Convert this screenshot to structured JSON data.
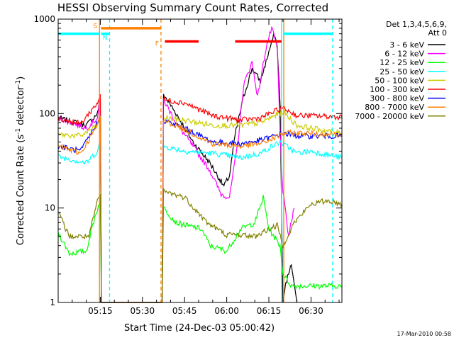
{
  "chart_data": {
    "type": "line",
    "title": "HESSI Observing Summary Count Rates, Corrected",
    "xlabel": "Start Time (24-Dec-03 05:00:42)",
    "ylabel_main": "Corrected Count Rate (s",
    "ylabel_sup1": "-1",
    "ylabel_mid": " detector",
    "ylabel_sup2": "-1",
    "ylabel_end": ")",
    "y_scale": "log",
    "ylim": [
      1,
      1000
    ],
    "xlim_minutes": [
      0,
      101
    ],
    "x_ticks": [
      {
        "m": 15,
        "label": "05:15"
      },
      {
        "m": 30,
        "label": "05:30"
      },
      {
        "m": 45,
        "label": "05:45"
      },
      {
        "m": 60,
        "label": "06:00"
      },
      {
        "m": 75,
        "label": "06:15"
      },
      {
        "m": 90,
        "label": "06:30"
      }
    ],
    "y_ticks": [
      {
        "v": 1,
        "label": "1"
      },
      {
        "v": 10,
        "label": "10"
      },
      {
        "v": 100,
        "label": "100"
      },
      {
        "v": 1000,
        "label": "1000"
      }
    ],
    "legend_header": [
      "Det 1,3,4,5,6,9,",
      "Att 0"
    ],
    "series": [
      {
        "name": "3 - 6 keV",
        "color": "#000000",
        "points": [
          [
            0,
            90
          ],
          [
            10,
            75
          ],
          [
            14,
            100
          ],
          [
            15,
            150
          ],
          [
            15.4,
            1
          ],
          [
            37,
            1
          ],
          [
            37.5,
            160
          ],
          [
            42,
            100
          ],
          [
            48,
            50
          ],
          [
            54,
            30
          ],
          [
            59,
            17
          ],
          [
            61,
            22
          ],
          [
            63,
            60
          ],
          [
            66,
            150
          ],
          [
            69,
            300
          ],
          [
            72,
            220
          ],
          [
            75,
            450
          ],
          [
            77,
            700
          ],
          [
            78,
            500
          ],
          [
            79,
            120
          ],
          [
            80,
            1
          ],
          [
            81,
            1.6
          ],
          [
            83,
            2.5
          ],
          [
            85,
            1
          ]
        ]
      },
      {
        "name": "6 - 12 keV",
        "color": "#ff00ff",
        "points": [
          [
            0,
            90
          ],
          [
            10,
            70
          ],
          [
            14,
            90
          ],
          [
            15,
            150
          ],
          [
            15.4,
            1
          ],
          [
            37,
            1
          ],
          [
            37.5,
            140
          ],
          [
            42,
            80
          ],
          [
            48,
            45
          ],
          [
            54,
            25
          ],
          [
            58,
            14
          ],
          [
            61,
            13
          ],
          [
            64,
            50
          ],
          [
            66,
            200
          ],
          [
            69,
            350
          ],
          [
            71,
            150
          ],
          [
            74,
            500
          ],
          [
            76,
            800
          ],
          [
            78,
            500
          ],
          [
            79,
            60
          ],
          [
            80,
            15
          ],
          [
            82,
            5
          ],
          [
            84,
            10
          ]
        ]
      },
      {
        "name": "12 - 25 keV",
        "color": "#00ff00",
        "points": [
          [
            0,
            5.5
          ],
          [
            4,
            3.3
          ],
          [
            10,
            3.5
          ],
          [
            13,
            8
          ],
          [
            15,
            12
          ],
          [
            15.4,
            1
          ],
          [
            37,
            1
          ],
          [
            37.5,
            10
          ],
          [
            42,
            7
          ],
          [
            46,
            6.5
          ],
          [
            51,
            6
          ],
          [
            54,
            4
          ],
          [
            60,
            3.5
          ],
          [
            65,
            6
          ],
          [
            70,
            7
          ],
          [
            73,
            13
          ],
          [
            75,
            6
          ],
          [
            79,
            4
          ],
          [
            80,
            2
          ],
          [
            83,
            1.5
          ],
          [
            101,
            1.5
          ]
        ]
      },
      {
        "name": "25 - 50 keV",
        "color": "#00ffff",
        "points": [
          [
            0,
            35
          ],
          [
            6,
            32
          ],
          [
            10,
            30
          ],
          [
            14,
            40
          ],
          [
            15,
            50
          ],
          [
            15.4,
            1
          ],
          [
            37,
            1
          ],
          [
            37.5,
            45
          ],
          [
            45,
            40
          ],
          [
            55,
            38
          ],
          [
            65,
            34
          ],
          [
            72,
            38
          ],
          [
            76,
            45
          ],
          [
            79,
            50
          ],
          [
            85,
            38
          ],
          [
            90,
            40
          ],
          [
            101,
            34
          ]
        ]
      },
      {
        "name": "50 - 100 keV",
        "color": "#cccc00",
        "points": [
          [
            0,
            60
          ],
          [
            8,
            58
          ],
          [
            14,
            75
          ],
          [
            15,
            95
          ],
          [
            15.4,
            1
          ],
          [
            37,
            1
          ],
          [
            37.5,
            90
          ],
          [
            45,
            85
          ],
          [
            55,
            75
          ],
          [
            65,
            75
          ],
          [
            72,
            80
          ],
          [
            77,
            95
          ],
          [
            80,
            105
          ],
          [
            85,
            75
          ],
          [
            90,
            70
          ],
          [
            101,
            62
          ]
        ]
      },
      {
        "name": "100 - 300 keV",
        "color": "#ff0000",
        "points": [
          [
            0,
            90
          ],
          [
            8,
            78
          ],
          [
            14,
            130
          ],
          [
            15,
            160
          ],
          [
            15.4,
            1
          ],
          [
            37,
            1
          ],
          [
            37.5,
            140
          ],
          [
            45,
            130
          ],
          [
            55,
            95
          ],
          [
            65,
            85
          ],
          [
            72,
            90
          ],
          [
            77,
            105
          ],
          [
            80,
            115
          ],
          [
            85,
            95
          ],
          [
            90,
            95
          ],
          [
            101,
            92
          ]
        ]
      },
      {
        "name": "300 - 800 keV",
        "color": "#0000ff",
        "points": [
          [
            0,
            45
          ],
          [
            8,
            40
          ],
          [
            14,
            80
          ],
          [
            15,
            95
          ],
          [
            15.4,
            1
          ],
          [
            37,
            1
          ],
          [
            37.5,
            85
          ],
          [
            45,
            70
          ],
          [
            55,
            50
          ],
          [
            65,
            48
          ],
          [
            72,
            52
          ],
          [
            77,
            58
          ],
          [
            80,
            62
          ],
          [
            85,
            58
          ],
          [
            101,
            58
          ]
        ]
      },
      {
        "name": "800 - 7000 keV",
        "color": "#ff8000",
        "points": [
          [
            0,
            45
          ],
          [
            8,
            38
          ],
          [
            14,
            75
          ],
          [
            15,
            95
          ],
          [
            15.4,
            1
          ],
          [
            37,
            1
          ],
          [
            37.5,
            85
          ],
          [
            45,
            68
          ],
          [
            55,
            48
          ],
          [
            65,
            45
          ],
          [
            72,
            48
          ],
          [
            77,
            55
          ],
          [
            80,
            62
          ],
          [
            85,
            62
          ],
          [
            101,
            60
          ]
        ]
      },
      {
        "name": "7000 - 20000 keV",
        "color": "#808000",
        "points": [
          [
            0,
            9
          ],
          [
            4,
            5
          ],
          [
            11,
            5
          ],
          [
            14,
            12
          ],
          [
            15,
            14
          ],
          [
            15.4,
            1
          ],
          [
            37,
            1
          ],
          [
            37.5,
            15
          ],
          [
            45,
            13
          ],
          [
            53,
            7
          ],
          [
            60,
            5.2
          ],
          [
            65,
            5.2
          ],
          [
            70,
            5
          ],
          [
            75,
            6
          ],
          [
            78,
            6.5
          ],
          [
            80,
            4
          ],
          [
            84,
            7
          ],
          [
            90,
            11
          ],
          [
            96,
            12
          ],
          [
            101,
            11
          ]
        ]
      }
    ],
    "attenuator_bars": [
      {
        "m0": 0,
        "m1": 14.7,
        "value": 700,
        "color": "#00ffff"
      },
      {
        "m0": 15.3,
        "m1": 18.3,
        "value": 700,
        "color": "#00ffff"
      },
      {
        "m0": 15.3,
        "m1": 36.6,
        "value": 800,
        "color": "#ff8000"
      },
      {
        "m0": 38,
        "m1": 50,
        "value": 580,
        "color": "#ff0000"
      },
      {
        "m0": 63,
        "m1": 79.5,
        "value": 580,
        "color": "#ff0000"
      },
      {
        "m0": 80.3,
        "m1": 97.7,
        "value": 700,
        "color": "#00ffff"
      }
    ],
    "event_lines": [
      {
        "m": 14.7,
        "color": "#ff8000",
        "dashed": false,
        "label": "S",
        "label_value": 860
      },
      {
        "m": 18.3,
        "color": "#00ffff",
        "dashed": true,
        "label": "N",
        "label_value": 650
      },
      {
        "m": 36.6,
        "color": "#ff8000",
        "dashed": true,
        "label": "F",
        "label_value": 560
      },
      {
        "m": 79.5,
        "color": "#00ffff",
        "dashed": false,
        "label": "",
        "label_value": 0
      },
      {
        "m": 80.3,
        "color": "#ff8000",
        "dashed": false,
        "label": "",
        "label_value": 0
      },
      {
        "m": 97.7,
        "color": "#00ffff",
        "dashed": true,
        "label": "",
        "label_value": 0
      }
    ]
  },
  "footer_stamp": "17-Mar-2010 00:58"
}
